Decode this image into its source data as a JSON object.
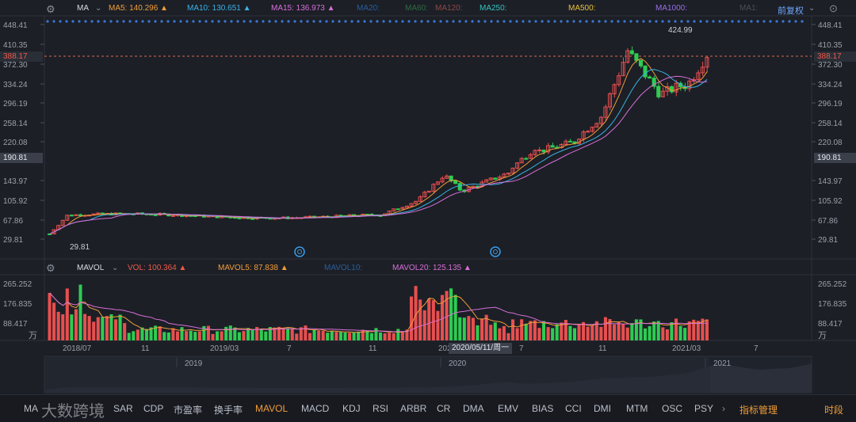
{
  "main_panel": {
    "indicator": "MA",
    "ma": [
      {
        "label": "MA5: 140.296",
        "arrow": "▲",
        "color": "#f29d38"
      },
      {
        "label": "MA10: 130.651",
        "arrow": "▲",
        "color": "#3ab2e6"
      },
      {
        "label": "MA15: 136.973",
        "arrow": "▲",
        "color": "#d76fd8"
      },
      {
        "label": "MA20:",
        "arrow": "",
        "color": "#2a5f9a"
      },
      {
        "label": "MA60:",
        "arrow": "",
        "color": "#2f6b45"
      },
      {
        "label": "MA120:",
        "arrow": "",
        "color": "#8a4a4a"
      },
      {
        "label": "MA250:",
        "arrow": "",
        "color": "#31c4c0"
      },
      {
        "label": "MA500:",
        "arrow": "",
        "color": "#e8c23a"
      },
      {
        "label": "MA1000:",
        "arrow": "",
        "color": "#9a6ee6"
      },
      {
        "label": "MA1:",
        "arrow": "",
        "color": "#4a4f5a"
      }
    ],
    "adjust_label": "前复权",
    "y_ticks_left": [
      "448.41",
      "410.35",
      "372.30",
      "334.24",
      "296.19",
      "258.14",
      "220.08",
      "190.81",
      "143.97",
      "105.92",
      "67.86",
      "29.81"
    ],
    "y_ticks_right": [
      "448.41",
      "410.35",
      "372.30",
      "334.24",
      "296.19",
      "258.14",
      "220.08",
      "190.81",
      "143.97",
      "105.92",
      "67.86",
      "29.81"
    ],
    "current_price": "388.17",
    "high_label": "424.99",
    "low_label": "29.81"
  },
  "volume_panel": {
    "indicator": "MAVOL",
    "vol": [
      {
        "label": "VOL: 100.364",
        "arrow": "▲",
        "color": "#f05a4a"
      },
      {
        "label": "MAVOL5: 87.838",
        "arrow": "▲",
        "color": "#f29d38"
      },
      {
        "label": "MAVOL10:",
        "arrow": "",
        "color": "#2a5f9a"
      },
      {
        "label": "MAVOL20: 125.135",
        "arrow": "▲",
        "color": "#d76fd8"
      }
    ],
    "y_ticks": [
      "265.252",
      "176.835",
      "88.417"
    ],
    "unit": "万"
  },
  "x_axis": {
    "labels": [
      "2018/07",
      "11",
      "2019/03",
      "7",
      "11",
      "2020/",
      "7",
      "11",
      "2021/03",
      "7"
    ],
    "crosshair_label": "2020/05/11/周一"
  },
  "navigator": {
    "years": [
      "2019",
      "2020",
      "2021"
    ]
  },
  "toolbar": {
    "items": [
      "MA",
      "SAR",
      "CDP",
      "市盈率",
      "换手率",
      "MAVOL",
      "MACD",
      "KDJ",
      "RSI",
      "ARBR",
      "CR",
      "DMA",
      "EMV",
      "BIAS",
      "CCI",
      "DMI",
      "MTM",
      "OSC",
      "PSY"
    ],
    "active": "MAVOL",
    "manage_label": "指标管理",
    "period_label": "时段",
    "watermark": "大数跨境"
  },
  "chart_data": {
    "type": "candlestick",
    "y_range": [
      29.81,
      448.41
    ],
    "volume_range": [
      0,
      265.252
    ],
    "volume_unit": "万",
    "high": 424.99,
    "low": 29.81,
    "last": 388.17
  }
}
